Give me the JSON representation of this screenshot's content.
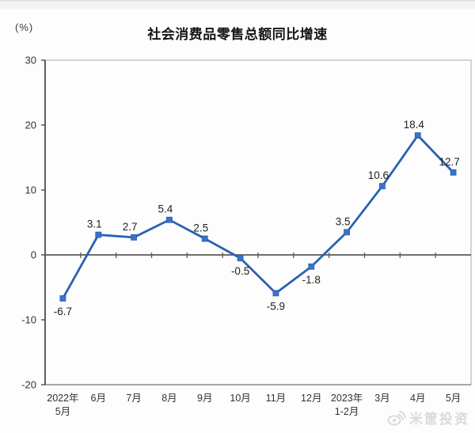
{
  "page": {
    "unit_label": "(%)",
    "watermark_text": "米筐投资"
  },
  "chart_data": {
    "type": "line",
    "title": "社会消费品零售总额同比增速",
    "unit": "(%)",
    "categories": [
      [
        "2022年",
        "5月"
      ],
      [
        "6月"
      ],
      [
        "7月"
      ],
      [
        "8月"
      ],
      [
        "9月"
      ],
      [
        "10月"
      ],
      [
        "11月"
      ],
      [
        "12月"
      ],
      [
        "2023年",
        "1-2月"
      ],
      [
        "3月"
      ],
      [
        "4月"
      ],
      [
        "5月"
      ]
    ],
    "values": [
      -6.7,
      3.1,
      2.7,
      5.4,
      2.5,
      -0.5,
      -5.9,
      -1.8,
      3.5,
      10.6,
      18.4,
      12.7
    ],
    "data_labels": [
      "-6.7",
      "3.1",
      "2.7",
      "5.4",
      "2.5",
      "-0.5",
      "-5.9",
      "-1.8",
      "3.5",
      "10.6",
      "18.4",
      "12.7"
    ],
    "xlabel": "",
    "ylabel": "(%)",
    "ylim": [
      -20,
      30
    ],
    "yticks": [
      30,
      20,
      10,
      0,
      -10,
      -20
    ],
    "grid": false,
    "legend": "none",
    "colors": {
      "line": "#2a62b0",
      "marker": "#3a72c6",
      "axis": "#4d4d4d",
      "zero_line": "#5a5a5a",
      "plot_border": "#b9b9b9",
      "bottom_border": "#8d8d8d",
      "value_label": "#1f1f1f",
      "tick_label": "#333333",
      "watermark": "#dadada"
    }
  }
}
